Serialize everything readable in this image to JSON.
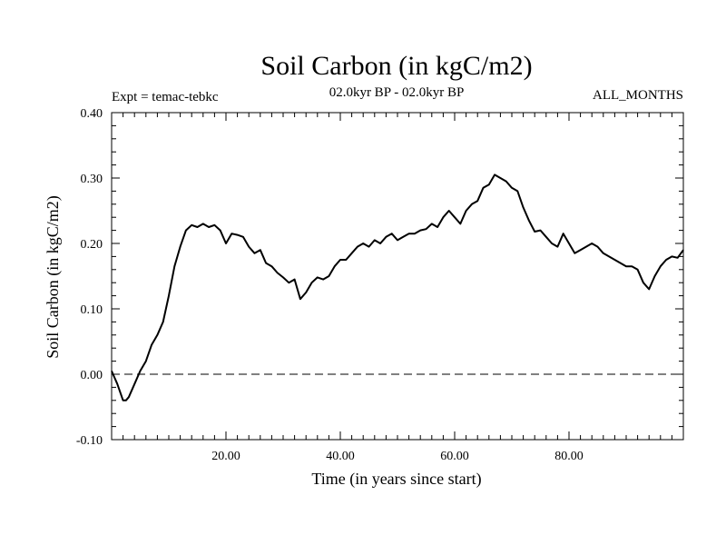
{
  "chart_data": {
    "type": "line",
    "title": "Soil Carbon (in kgC/m2)",
    "subtitle_left": "Expt = temac-tebkc",
    "subtitle_center": "02.0kyr BP - 02.0kyr BP",
    "subtitle_right": "ALL_MONTHS",
    "xlabel": "Time (in years since start)",
    "ylabel": "Soil Carbon (in kgC/m2)",
    "xlim": [
      0,
      100
    ],
    "ylim": [
      -0.1,
      0.4
    ],
    "x_ticks": [
      {
        "value": 20,
        "label": "20.00"
      },
      {
        "value": 40,
        "label": "40.00"
      },
      {
        "value": 60,
        "label": "60.00"
      },
      {
        "value": 80,
        "label": "80.00"
      }
    ],
    "y_ticks": [
      {
        "value": -0.1,
        "label": "-0.10"
      },
      {
        "value": 0.0,
        "label": "0.00"
      },
      {
        "value": 0.1,
        "label": "0.10"
      },
      {
        "value": 0.2,
        "label": "0.20"
      },
      {
        "value": 0.3,
        "label": "0.30"
      },
      {
        "value": 0.4,
        "label": "0.40"
      }
    ],
    "reference_line": {
      "y": 0.0,
      "style": "dashed"
    },
    "line_color": "#000000",
    "series": [
      {
        "name": "Soil Carbon",
        "x": [
          0,
          1,
          2,
          2.5,
          3,
          4,
          5,
          6,
          7,
          8,
          9,
          10,
          11,
          12,
          13,
          14,
          15,
          16,
          17,
          18,
          19,
          20,
          21,
          22,
          23,
          24,
          25,
          26,
          27,
          28,
          29,
          30,
          31,
          32,
          33,
          34,
          35,
          36,
          37,
          38,
          39,
          40,
          41,
          42,
          43,
          44,
          45,
          46,
          47,
          48,
          49,
          50,
          51,
          52,
          53,
          54,
          55,
          56,
          57,
          58,
          59,
          60,
          61,
          62,
          63,
          64,
          65,
          66,
          67,
          68,
          69,
          70,
          71,
          72,
          73,
          74,
          75,
          76,
          77,
          78,
          79,
          80,
          81,
          82,
          83,
          84,
          85,
          86,
          87,
          88,
          89,
          90,
          91,
          92,
          93,
          94,
          95,
          96,
          97,
          98,
          99,
          100
        ],
        "y": [
          0.005,
          -0.015,
          -0.04,
          -0.04,
          -0.035,
          -0.015,
          0.005,
          0.02,
          0.045,
          0.06,
          0.08,
          0.12,
          0.165,
          0.195,
          0.22,
          0.228,
          0.225,
          0.23,
          0.225,
          0.228,
          0.22,
          0.2,
          0.215,
          0.213,
          0.21,
          0.195,
          0.185,
          0.19,
          0.17,
          0.165,
          0.155,
          0.148,
          0.14,
          0.145,
          0.115,
          0.125,
          0.14,
          0.148,
          0.145,
          0.15,
          0.165,
          0.175,
          0.175,
          0.185,
          0.195,
          0.2,
          0.195,
          0.205,
          0.2,
          0.21,
          0.215,
          0.205,
          0.21,
          0.215,
          0.215,
          0.22,
          0.222,
          0.23,
          0.225,
          0.24,
          0.25,
          0.24,
          0.23,
          0.25,
          0.26,
          0.265,
          0.285,
          0.29,
          0.305,
          0.3,
          0.295,
          0.285,
          0.28,
          0.255,
          0.235,
          0.218,
          0.22,
          0.21,
          0.2,
          0.195,
          0.215,
          0.2,
          0.185,
          0.19,
          0.195,
          0.2,
          0.195,
          0.185,
          0.18,
          0.175,
          0.17,
          0.165,
          0.165,
          0.16,
          0.14,
          0.13,
          0.15,
          0.165,
          0.175,
          0.18,
          0.178,
          0.19
        ]
      }
    ]
  }
}
